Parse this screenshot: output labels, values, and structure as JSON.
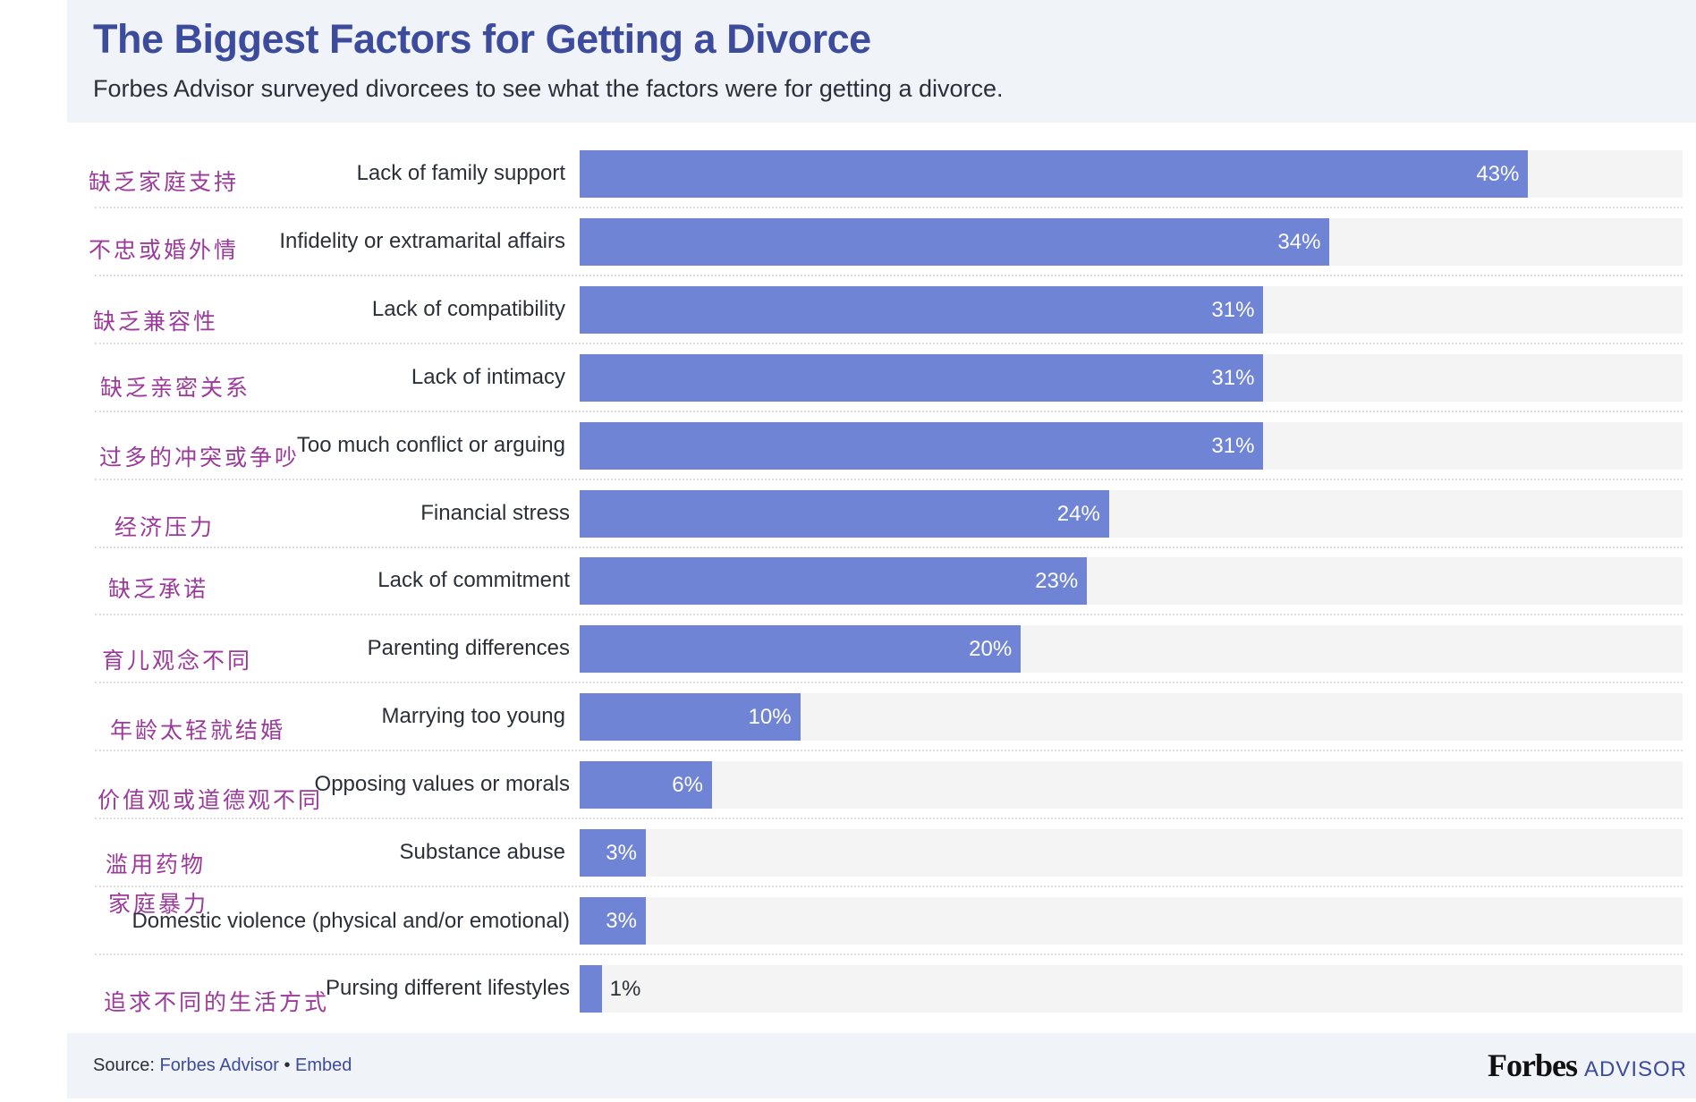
{
  "header": {
    "title": "The Biggest Factors for Getting a Divorce",
    "subtitle": "Forbes Advisor surveyed divorcees to see what the factors were for getting a divorce."
  },
  "chart_data": {
    "type": "bar",
    "orientation": "horizontal",
    "title": "The Biggest Factors for Getting a Divorce",
    "xlabel": "",
    "ylabel": "",
    "xlim": [
      0,
      50
    ],
    "grid": false,
    "unit": "%",
    "bar_color": "#7084d6",
    "track_color": "#f4f4f5",
    "categories": [
      "Lack of family support",
      "Infidelity or extramarital affairs",
      "Lack of compatibility",
      "Lack of intimacy",
      "Too much conflict or arguing",
      "Financial stress",
      "Lack of commitment",
      "Parenting differences",
      "Marrying too young",
      "Opposing values or morals",
      "Substance abuse",
      "Domestic violence (physical and/or emotional)",
      "Pursing different lifestyles"
    ],
    "values": [
      43,
      34,
      31,
      31,
      31,
      24,
      23,
      20,
      10,
      6,
      3,
      3,
      1
    ],
    "value_labels": [
      "43%",
      "34%",
      "31%",
      "31%",
      "31%",
      "24%",
      "23%",
      "20%",
      "10%",
      "6%",
      "3%",
      "3%",
      "1%"
    ]
  },
  "annotations": {
    "color": "#9b3a9b",
    "items": [
      "缺乏家庭支持",
      "不忠或婚外情",
      "缺乏兼容性",
      "缺乏亲密关系",
      "过多的冲突或争吵",
      "经济压力",
      "缺乏承诺",
      "育儿观念不同",
      "年龄太轻就结婚",
      "价值观或道德观不同",
      "滥用药物",
      "家庭暴力",
      "追求不同的生活方式"
    ]
  },
  "footer": {
    "source_label": "Source:",
    "source_link": "Forbes Advisor",
    "separator": "•",
    "embed_link": "Embed",
    "logo_forbes": "Forbes",
    "logo_advisor": "ADVISOR"
  },
  "colors": {
    "title": "#3d4b9c",
    "header_bg": "#f0f3f8",
    "annotation": "#9b3a9b"
  }
}
